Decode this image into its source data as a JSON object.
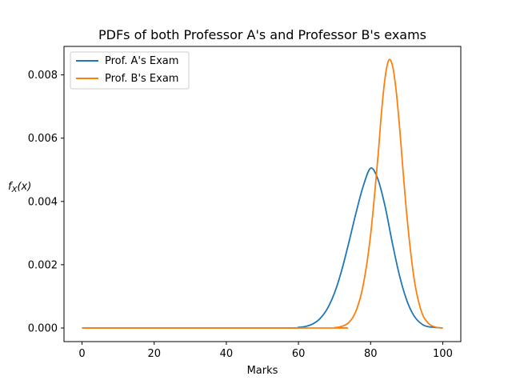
{
  "chart_data": {
    "type": "line",
    "title": "PDFs of both Professor A's and Professor B's exams",
    "xlabel": "Marks",
    "ylabel_base": "f",
    "ylabel_sub": "X",
    "ylabel_suffix": "(x)",
    "xlim": [
      -5,
      105
    ],
    "ylim": [
      -0.00043,
      0.0089
    ],
    "xticks": [
      0,
      20,
      40,
      60,
      80,
      100
    ],
    "xtick_labels": [
      "0",
      "20",
      "40",
      "60",
      "80",
      "100"
    ],
    "yticks": [
      0.0,
      0.002,
      0.004,
      0.006,
      0.008
    ],
    "ytick_labels": [
      "0.000",
      "0.002",
      "0.004",
      "0.006",
      "0.008"
    ],
    "grid": false,
    "legend_position": "top-left",
    "x": [
      0,
      55,
      60,
      62,
      64,
      66,
      68,
      70,
      72,
      74,
      76,
      78,
      80,
      82,
      84,
      86,
      88,
      90,
      92,
      94,
      96,
      100
    ],
    "series": [
      {
        "name": "Prof. A's Exam",
        "color": "#1f77b4",
        "values": [
          0.0,
          0.0,
          2e-05,
          5e-05,
          0.00013,
          0.0003,
          0.00061,
          0.00111,
          0.00183,
          0.00272,
          0.00366,
          0.0045,
          0.00505,
          0.00471,
          0.00385,
          0.0027,
          0.00166,
          0.00088,
          0.00039,
          0.00014,
          4e-05,
          0.0
        ]
      },
      {
        "name": "Prof. B's Exam",
        "color": "#ff7f0e",
        "x": [
          0,
          68,
          70,
          72,
          74,
          76,
          78,
          80,
          82,
          83,
          84,
          85,
          86,
          87,
          88,
          90,
          92,
          94,
          96,
          98,
          100
        ],
        "values": [
          0.0,
          0.0,
          1e-05,
          5e-05,
          0.00018,
          0.00055,
          0.00139,
          0.00295,
          0.00537,
          0.0068,
          0.0079,
          0.00846,
          0.00832,
          0.00758,
          0.00638,
          0.00361,
          0.0016,
          0.00055,
          0.00015,
          3e-05,
          0.0
        ]
      }
    ]
  }
}
